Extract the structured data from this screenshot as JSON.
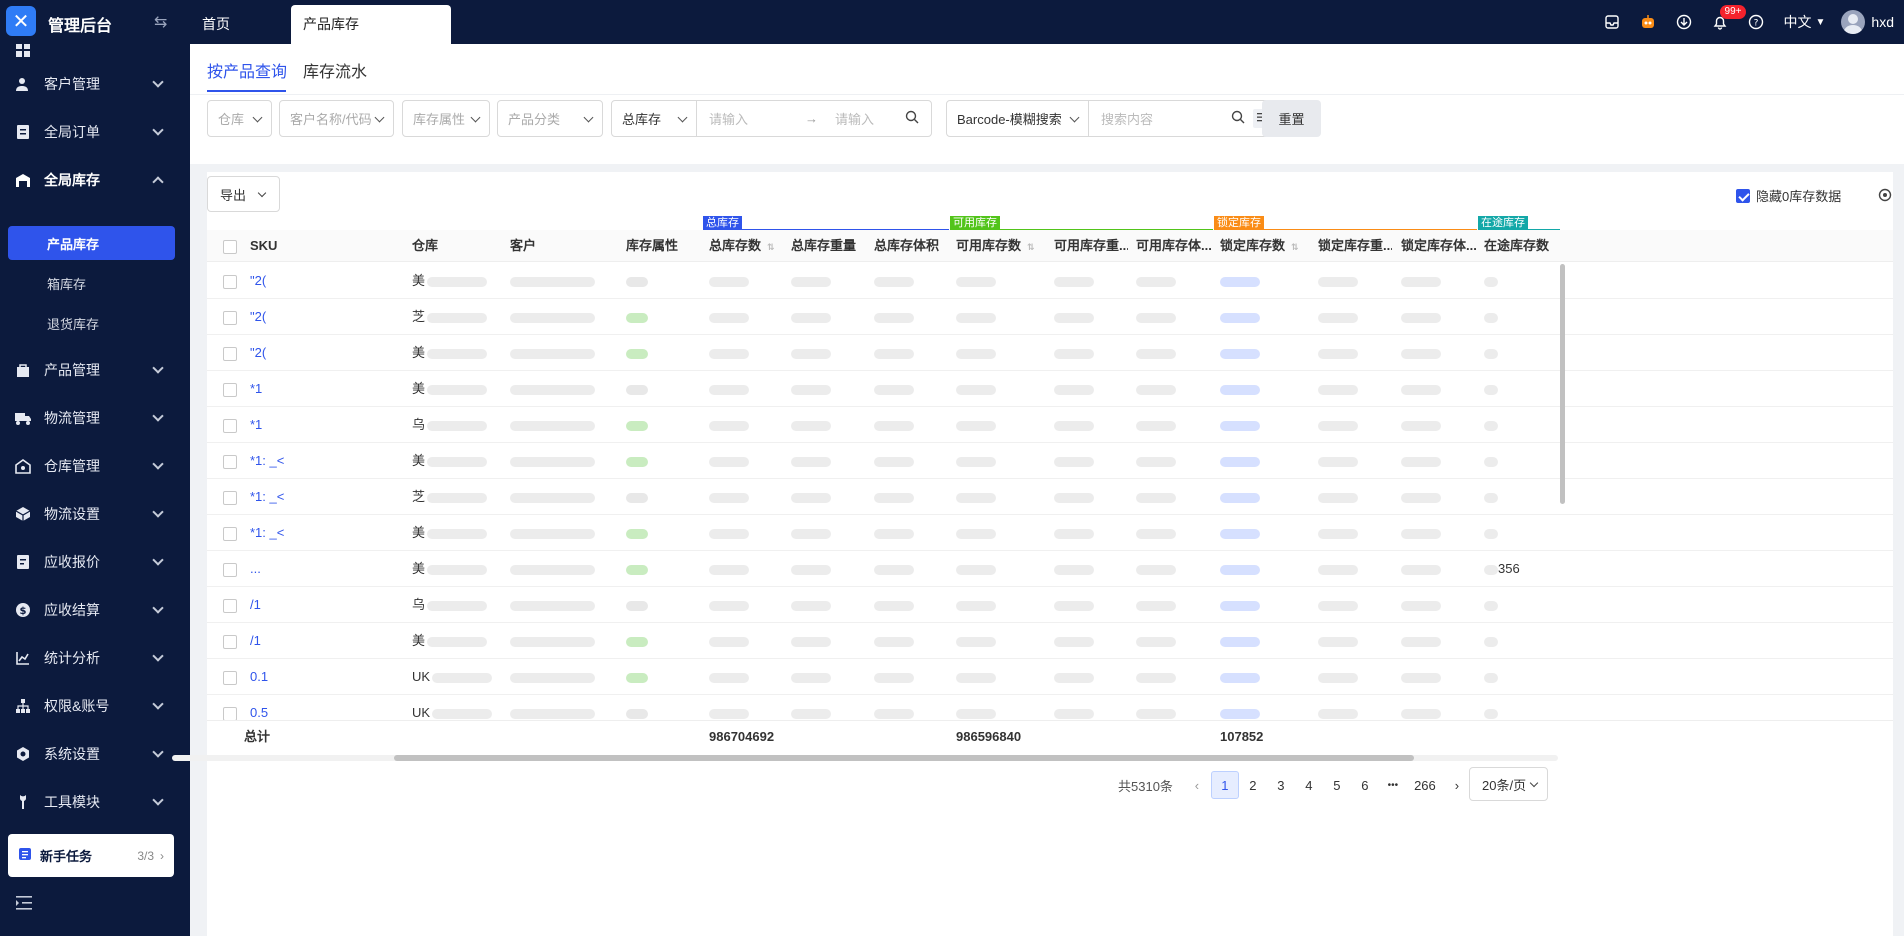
{
  "app": {
    "title": "管理后台"
  },
  "tabs": {
    "home": "首页",
    "active": "产品库存"
  },
  "topbar": {
    "badge": "99+",
    "lang": "中文",
    "user": "hxd"
  },
  "sidebar": {
    "items": [
      {
        "label": "客户管理",
        "icon": "customer-icon"
      },
      {
        "label": "全局订单",
        "icon": "order-icon"
      },
      {
        "label": "全局库存",
        "icon": "warehouse-icon"
      },
      {
        "label": "产品管理",
        "icon": "product-icon"
      },
      {
        "label": "物流管理",
        "icon": "truck-icon"
      },
      {
        "label": "仓库管理",
        "icon": "storehouse-icon"
      },
      {
        "label": "物流设置",
        "icon": "package-icon"
      },
      {
        "label": "应收报价",
        "icon": "quote-icon"
      },
      {
        "label": "应收结算",
        "icon": "dollar-icon"
      },
      {
        "label": "统计分析",
        "icon": "chart-icon"
      },
      {
        "label": "权限&账号",
        "icon": "org-icon"
      },
      {
        "label": "系统设置",
        "icon": "settings-icon"
      },
      {
        "label": "工具模块",
        "icon": "wrench-icon"
      }
    ],
    "sub": [
      "产品库存",
      "箱库存",
      "退货库存"
    ],
    "newbie": {
      "label": "新手任务",
      "count": "3/3"
    }
  },
  "subtabs": [
    "按产品查询",
    "库存流水"
  ],
  "filters": {
    "warehouse": "仓库",
    "customer": "客户名称/代码",
    "attr": "库存属性",
    "category": "产品分类",
    "stock_type": "总库存",
    "min_placeholder": "请输入",
    "max_placeholder": "请输入",
    "search_type": "Barcode-模糊搜索",
    "search_placeholder": "搜索内容",
    "reset": "重置"
  },
  "toolbar": {
    "export": "导出",
    "hide_zero": "隐藏0库存数据"
  },
  "groups": [
    {
      "label": "总库存",
      "color": "#2f54eb"
    },
    {
      "label": "可用库存",
      "color": "#52c41a"
    },
    {
      "label": "锁定库存",
      "color": "#fa8c16"
    },
    {
      "label": "在途库存",
      "color": "#13a8a8"
    }
  ],
  "columns": [
    "SKU",
    "仓库",
    "客户",
    "库存属性",
    "总库存数",
    "总库存重量",
    "总库存体积",
    "可用库存数",
    "可用库存重...",
    "可用库存体...",
    "锁定库存数",
    "锁定库存重...",
    "锁定库存体...",
    "在途库存数"
  ],
  "rows": [
    {
      "sku": "\"2(",
      "wh": "美",
      "last": ""
    },
    {
      "sku": "\"2(",
      "wh": "芝",
      "last": ""
    },
    {
      "sku": "\"2(",
      "wh": "美",
      "last": ""
    },
    {
      "sku": "*1",
      "wh": "美",
      "last": ""
    },
    {
      "sku": "*1",
      "wh": "乌",
      "last": ""
    },
    {
      "sku": "*1: _<",
      "wh": "美",
      "last": ""
    },
    {
      "sku": "*1: _<",
      "wh": "芝",
      "last": ""
    },
    {
      "sku": "*1: _<",
      "wh": "美",
      "last": ""
    },
    {
      "sku": "...",
      "wh": "美",
      "last": "356"
    },
    {
      "sku": "/1",
      "wh": "乌",
      "last": ""
    },
    {
      "sku": "/1",
      "wh": "美",
      "last": ""
    },
    {
      "sku": "0.1",
      "wh": "UK",
      "last": ""
    },
    {
      "sku": "0.5",
      "wh": "UK",
      "last": ""
    }
  ],
  "totals": {
    "label": "总计",
    "total": "986704692",
    "available": "986596840",
    "locked": "107852"
  },
  "pagination": {
    "total": "共5310条",
    "pages": [
      "1",
      "2",
      "3",
      "4",
      "5",
      "6",
      "•••",
      "266"
    ],
    "size": "20条/页"
  }
}
